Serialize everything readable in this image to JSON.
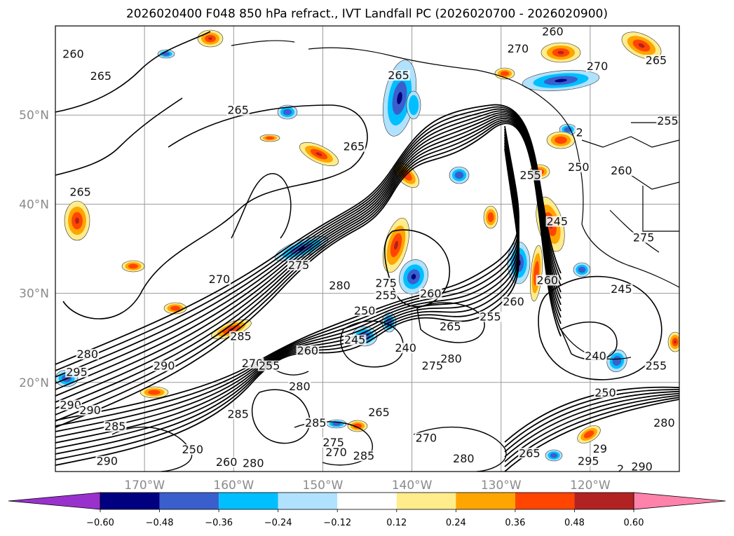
{
  "title": "2026020400 F048 850 hPa refract., IVT Landfall PC (2026020700 - 2026020900)",
  "map": {
    "lon_range": [
      -180,
      -110
    ],
    "lat_range": [
      10,
      60
    ],
    "gridlines": true,
    "lon_ticks": [
      {
        "lon": -170,
        "label": "170°W"
      },
      {
        "lon": -160,
        "label": "160°W"
      },
      {
        "lon": -150,
        "label": "150°W"
      },
      {
        "lon": -140,
        "label": "140°W"
      },
      {
        "lon": -130,
        "label": "130°W"
      },
      {
        "lon": -120,
        "label": "120°W"
      }
    ],
    "lat_ticks": [
      {
        "lat": 20,
        "label": "20°N"
      },
      {
        "lat": 30,
        "label": "30°N"
      },
      {
        "lat": 40,
        "label": "40°N"
      },
      {
        "lat": 50,
        "label": "50°N"
      }
    ],
    "contour_labels": [
      {
        "lon": -178,
        "lat": 56.9,
        "text": "260"
      },
      {
        "lon": -174.9,
        "lat": 54.4,
        "text": "265"
      },
      {
        "lon": -159.5,
        "lat": 50.6,
        "text": "265"
      },
      {
        "lon": -141.5,
        "lat": 54.5,
        "text": "265"
      },
      {
        "lon": -124.2,
        "lat": 59.4,
        "text": "260"
      },
      {
        "lon": -128.1,
        "lat": 57.5,
        "text": "270"
      },
      {
        "lon": -112.6,
        "lat": 56.2,
        "text": "265"
      },
      {
        "lon": -177.2,
        "lat": 41.4,
        "text": "265"
      },
      {
        "lon": -146.5,
        "lat": 46.5,
        "text": "265"
      },
      {
        "lon": -161.6,
        "lat": 31.6,
        "text": "270"
      },
      {
        "lon": -142.9,
        "lat": 31.2,
        "text": "275"
      },
      {
        "lon": -152.7,
        "lat": 33.2,
        "text": "275"
      },
      {
        "lon": -148.1,
        "lat": 30.9,
        "text": "280"
      },
      {
        "lon": -159.2,
        "lat": 25.2,
        "text": "285"
      },
      {
        "lon": -176.4,
        "lat": 23.2,
        "text": "280"
      },
      {
        "lon": -177.6,
        "lat": 21.2,
        "text": "295"
      },
      {
        "lon": -167.8,
        "lat": 21.9,
        "text": "290"
      },
      {
        "lon": -157.9,
        "lat": 22.2,
        "text": "270"
      },
      {
        "lon": -156,
        "lat": 21.9,
        "text": "255"
      },
      {
        "lon": -151.7,
        "lat": 23.6,
        "text": "260"
      },
      {
        "lon": -146.4,
        "lat": 24.8,
        "text": "245"
      },
      {
        "lon": -145.3,
        "lat": 28.1,
        "text": "250"
      },
      {
        "lon": -142.9,
        "lat": 29.8,
        "text": "255"
      },
      {
        "lon": -140.7,
        "lat": 23.9,
        "text": "240"
      },
      {
        "lon": -137.9,
        "lat": 30,
        "text": "260"
      },
      {
        "lon": -135.7,
        "lat": 26.3,
        "text": "265"
      },
      {
        "lon": -131.2,
        "lat": 27.4,
        "text": "255"
      },
      {
        "lon": -128.6,
        "lat": 29.1,
        "text": "260"
      },
      {
        "lon": -137.7,
        "lat": 21.9,
        "text": "275"
      },
      {
        "lon": -135.6,
        "lat": 22.7,
        "text": "280"
      },
      {
        "lon": -152.6,
        "lat": 19.6,
        "text": "280"
      },
      {
        "lon": -150.8,
        "lat": 15.5,
        "text": "285"
      },
      {
        "lon": -159.5,
        "lat": 16.5,
        "text": "285"
      },
      {
        "lon": -178.3,
        "lat": 17.5,
        "text": "290"
      },
      {
        "lon": -176.1,
        "lat": 16.9,
        "text": "290"
      },
      {
        "lon": -173.3,
        "lat": 15.1,
        "text": "285"
      },
      {
        "lon": -164.6,
        "lat": 12.5,
        "text": "250"
      },
      {
        "lon": -160.8,
        "lat": 11.1,
        "text": "260"
      },
      {
        "lon": -157.8,
        "lat": 11,
        "text": "280"
      },
      {
        "lon": -174.2,
        "lat": 11.2,
        "text": "290"
      },
      {
        "lon": -143.7,
        "lat": 16.7,
        "text": "265"
      },
      {
        "lon": -148.8,
        "lat": 13.3,
        "text": "275"
      },
      {
        "lon": -148.5,
        "lat": 12.2,
        "text": "270"
      },
      {
        "lon": -145.4,
        "lat": 11.8,
        "text": "285"
      },
      {
        "lon": -138.4,
        "lat": 13.8,
        "text": "270"
      },
      {
        "lon": -134.2,
        "lat": 11.5,
        "text": "280"
      },
      {
        "lon": -126.8,
        "lat": 12.1,
        "text": "265"
      },
      {
        "lon": -120.2,
        "lat": 11.2,
        "text": "295"
      },
      {
        "lon": -118.9,
        "lat": 12.6,
        "text": "29"
      },
      {
        "lon": -114.2,
        "lat": 10.6,
        "text": "290"
      },
      {
        "lon": -116.6,
        "lat": 10.3,
        "text": "2"
      },
      {
        "lon": -111.7,
        "lat": 15.5,
        "text": "280"
      },
      {
        "lon": -118.3,
        "lat": 18.9,
        "text": "250"
      },
      {
        "lon": -112.6,
        "lat": 21.9,
        "text": "255"
      },
      {
        "lon": -119.4,
        "lat": 23,
        "text": "240"
      },
      {
        "lon": -116.5,
        "lat": 30.5,
        "text": "245"
      },
      {
        "lon": -124.8,
        "lat": 31.5,
        "text": "260"
      },
      {
        "lon": -126.7,
        "lat": 43.3,
        "text": "255"
      },
      {
        "lon": -123.7,
        "lat": 38.1,
        "text": "245"
      },
      {
        "lon": -121.3,
        "lat": 44.2,
        "text": "250"
      },
      {
        "lon": -116.5,
        "lat": 43.8,
        "text": "260"
      },
      {
        "lon": -114,
        "lat": 36.3,
        "text": "275"
      },
      {
        "lon": -111.3,
        "lat": 49.4,
        "text": "255"
      },
      {
        "lon": -119.2,
        "lat": 55.5,
        "text": "270"
      },
      {
        "lon": -121.2,
        "lat": 48.1,
        "text": "2"
      }
    ]
  },
  "colorbar": {
    "levels": [
      -0.72,
      -0.6,
      -0.48,
      -0.36,
      -0.24,
      -0.12,
      0.12,
      0.24,
      0.36,
      0.48,
      0.6,
      0.72
    ],
    "colors": [
      "#9932CC",
      "#000080",
      "#3A5FCD",
      "#00BFFF",
      "#B0E2FF",
      "#FFFFFF",
      "#FFEC8B",
      "#FFA500",
      "#FF4500",
      "#B22222",
      "#FF82AB"
    ],
    "extend": "both",
    "tick_labels": [
      "−0.60",
      "−0.48",
      "−0.36",
      "−0.24",
      "−0.12",
      "0.12",
      "0.24",
      "0.36",
      "0.48",
      "0.60"
    ]
  }
}
